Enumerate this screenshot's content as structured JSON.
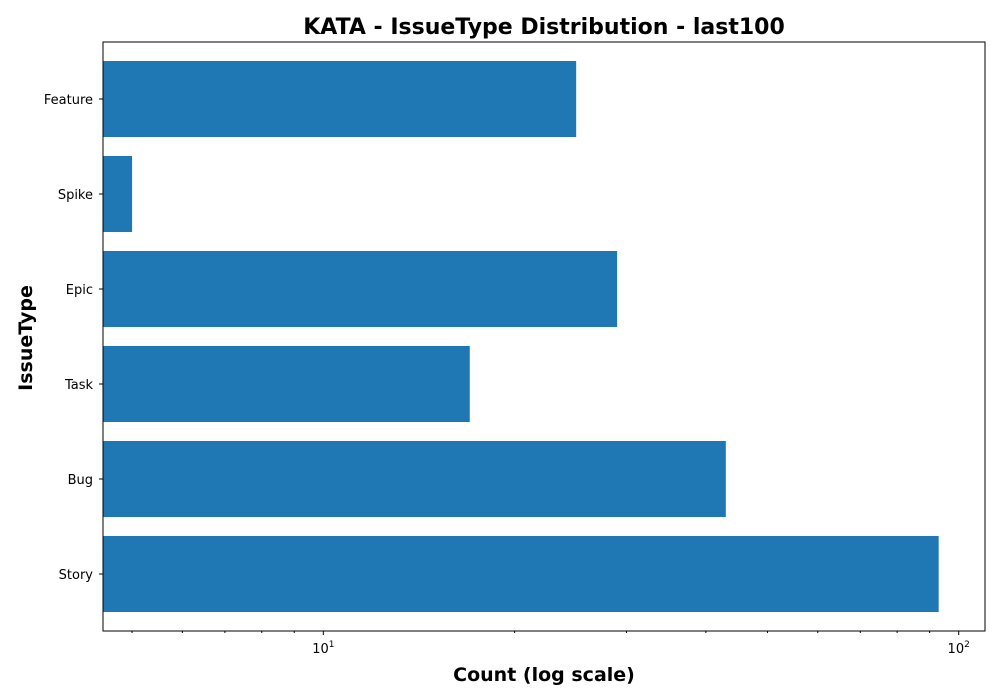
{
  "chart_data": {
    "type": "bar",
    "orientation": "horizontal",
    "title": "KATA - IssueType Distribution - last100",
    "xlabel": "Count (log scale)",
    "ylabel": "IssueType",
    "xscale": "log",
    "xlim": [
      4.5,
      110
    ],
    "x_ticks": [
      {
        "value": 10,
        "base": "10",
        "exponent": "1"
      },
      {
        "value": 100,
        "base": "10",
        "exponent": "2"
      }
    ],
    "categories": [
      "Story",
      "Bug",
      "Task",
      "Epic",
      "Spike",
      "Feature"
    ],
    "values": [
      93,
      43,
      17,
      29,
      5,
      25
    ],
    "bar_color": "#1f77b4",
    "grid": false,
    "legend": "none"
  }
}
